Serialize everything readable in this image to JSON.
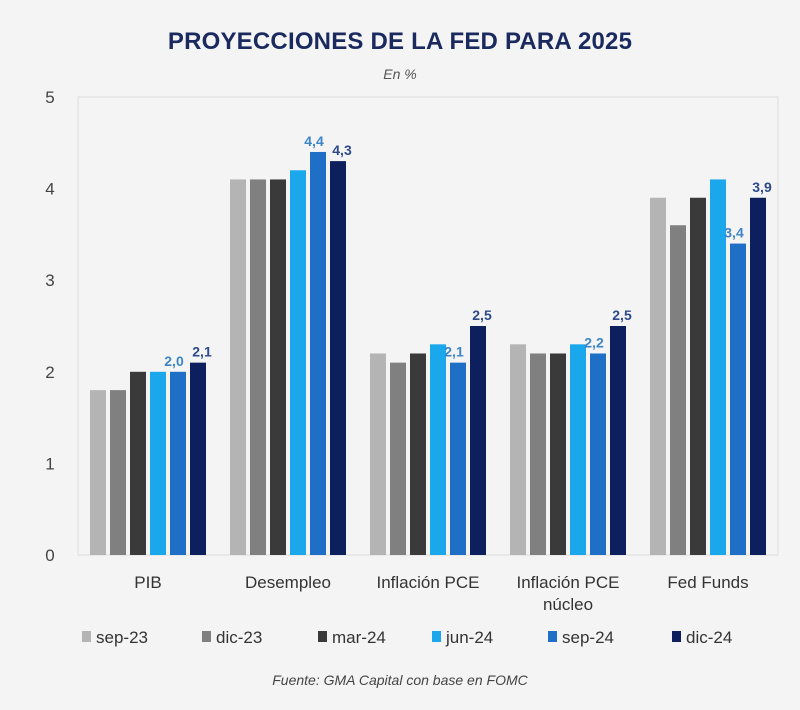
{
  "chart_data": {
    "type": "bar",
    "title": "PROYECCIONES DE LA FED PARA 2025",
    "subtitle": "En %",
    "source": "Fuente: GMA Capital con base en FOMC",
    "xlabel": "",
    "ylabel": "",
    "ylim": [
      0,
      5
    ],
    "yticks": [
      "0",
      "1",
      "2",
      "3",
      "4",
      "5"
    ],
    "grid": false,
    "legend_position": "bottom",
    "categories": [
      [
        "PIB"
      ],
      [
        "Desempleo"
      ],
      [
        "Inflación PCE"
      ],
      [
        "Inflación PCE",
        "núcleo"
      ],
      [
        "Fed Funds"
      ]
    ],
    "series": [
      {
        "name": "sep-23",
        "color": "#b4b4b4",
        "values": [
          1.8,
          4.1,
          2.2,
          2.3,
          3.9
        ]
      },
      {
        "name": "dic-23",
        "color": "#808080",
        "values": [
          1.8,
          4.1,
          2.1,
          2.2,
          3.6
        ]
      },
      {
        "name": "mar-24",
        "color": "#3a3a3a",
        "values": [
          2.0,
          4.1,
          2.2,
          2.2,
          3.9
        ]
      },
      {
        "name": "jun-24",
        "color": "#1aa7ec",
        "values": [
          2.0,
          4.2,
          2.3,
          2.3,
          4.1
        ]
      },
      {
        "name": "sep-24",
        "color": "#1f6fc6",
        "values": [
          2.0,
          4.4,
          2.1,
          2.2,
          3.4
        ]
      },
      {
        "name": "dic-24",
        "color": "#0d1f5c",
        "values": [
          2.1,
          4.3,
          2.5,
          2.5,
          3.9
        ]
      }
    ],
    "data_labels": [
      {
        "series": 4,
        "category": 0,
        "text": "2,0",
        "color": "#3d85c6"
      },
      {
        "series": 5,
        "category": 0,
        "text": "2,1",
        "color": "#2e4a8a"
      },
      {
        "series": 4,
        "category": 1,
        "text": "4,4",
        "color": "#3d85c6"
      },
      {
        "series": 5,
        "category": 1,
        "text": "4,3",
        "color": "#2e4a8a"
      },
      {
        "series": 4,
        "category": 2,
        "text": "2,1",
        "color": "#3d85c6"
      },
      {
        "series": 5,
        "category": 2,
        "text": "2,5",
        "color": "#2e4a8a"
      },
      {
        "series": 4,
        "category": 3,
        "text": "2,2",
        "color": "#3d85c6"
      },
      {
        "series": 5,
        "category": 3,
        "text": "2,5",
        "color": "#2e4a8a"
      },
      {
        "series": 4,
        "category": 4,
        "text": "3,4",
        "color": "#3d85c6"
      },
      {
        "series": 5,
        "category": 4,
        "text": "3,9",
        "color": "#2e4a8a"
      }
    ]
  }
}
